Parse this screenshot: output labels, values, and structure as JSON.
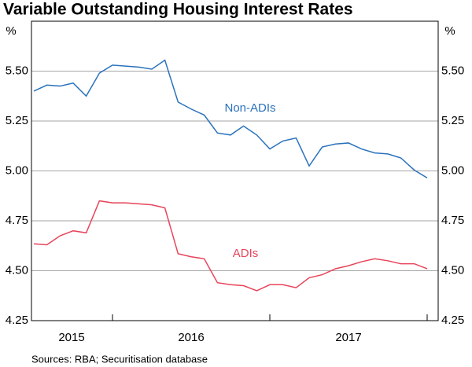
{
  "chart_data": {
    "type": "line",
    "title": "Variable Outstanding Housing Interest Rates",
    "y_unit": "%",
    "source": "Sources: RBA; Securitisation database",
    "x": [
      2015.5,
      2015.583,
      2015.667,
      2015.75,
      2015.833,
      2015.917,
      2016.0,
      2016.083,
      2016.167,
      2016.25,
      2016.333,
      2016.417,
      2016.5,
      2016.583,
      2016.667,
      2016.75,
      2016.833,
      2016.917,
      2017.0,
      2017.083,
      2017.167,
      2017.25,
      2017.333,
      2017.417,
      2017.5,
      2017.583,
      2017.667,
      2017.75,
      2017.833,
      2017.917,
      2018.0
    ],
    "xlim": [
      2015.485,
      2018.07
    ],
    "xticks": [
      2016,
      2017,
      2018
    ],
    "year_labels": [
      {
        "value": 2015.74,
        "label": "2015"
      },
      {
        "value": 2016.5,
        "label": "2016"
      },
      {
        "value": 2017.5,
        "label": "2017"
      }
    ],
    "ylim": [
      4.25,
      5.75
    ],
    "yticks": [
      {
        "value": 4.25,
        "label": "4.25"
      },
      {
        "value": 4.5,
        "label": "4.50"
      },
      {
        "value": 4.75,
        "label": "4.75"
      },
      {
        "value": 5.0,
        "label": "5.00"
      },
      {
        "value": 5.25,
        "label": "5.25"
      },
      {
        "value": 5.5,
        "label": "5.50"
      }
    ],
    "grid": true,
    "series": [
      {
        "name": "Non-ADIs",
        "color": "#2a72bd",
        "values": [
          5.4,
          5.43,
          5.425,
          5.44,
          5.375,
          5.49,
          5.53,
          5.525,
          5.52,
          5.51,
          5.555,
          5.345,
          5.31,
          5.28,
          5.19,
          5.18,
          5.225,
          5.18,
          5.11,
          5.15,
          5.165,
          5.025,
          5.12,
          5.135,
          5.14,
          5.11,
          5.09,
          5.085,
          5.065,
          5.005,
          4.965
        ]
      },
      {
        "name": "ADIs",
        "color": "#e8445a",
        "values": [
          4.635,
          4.63,
          4.675,
          4.7,
          4.69,
          4.85,
          4.84,
          4.84,
          4.835,
          4.83,
          4.815,
          4.585,
          4.57,
          4.56,
          4.44,
          4.43,
          4.425,
          4.4,
          4.43,
          4.43,
          4.415,
          4.465,
          4.48,
          4.51,
          4.525,
          4.545,
          4.56,
          4.55,
          4.535,
          4.535,
          4.51
        ]
      }
    ]
  }
}
